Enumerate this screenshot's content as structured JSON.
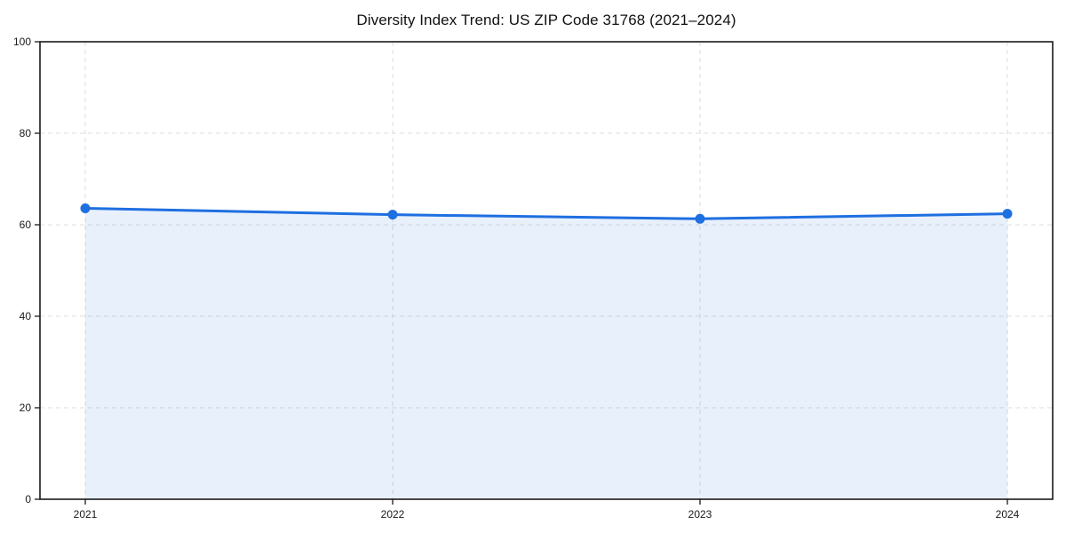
{
  "header": {
    "title": "Diversity Index Trend: US ZIP Code 31768 (2021–2024)"
  },
  "chart_data": {
    "type": "area",
    "title": "Diversity Index Trend: US ZIP Code 31768 (2021–2024)",
    "x": [
      "2021",
      "2022",
      "2023",
      "2024"
    ],
    "series": [
      {
        "name": "Diversity Index",
        "values": [
          63.6,
          62.2,
          61.3,
          62.4
        ]
      }
    ],
    "xlabel": "",
    "ylabel": "",
    "ylim": [
      0,
      100
    ],
    "yticks": [
      0,
      20,
      40,
      60,
      80,
      100
    ],
    "grid": true,
    "grid_style": "dashed",
    "legend": "none",
    "line_color": "#1e6fe0",
    "marker_color": "#1e6fe0",
    "fill_color": "#1e6fe0",
    "fill_opacity": 0.1,
    "grid_color": "#dedede",
    "frame_color": "#1a1a1a",
    "tick_label_color": "#1a1a1a"
  }
}
